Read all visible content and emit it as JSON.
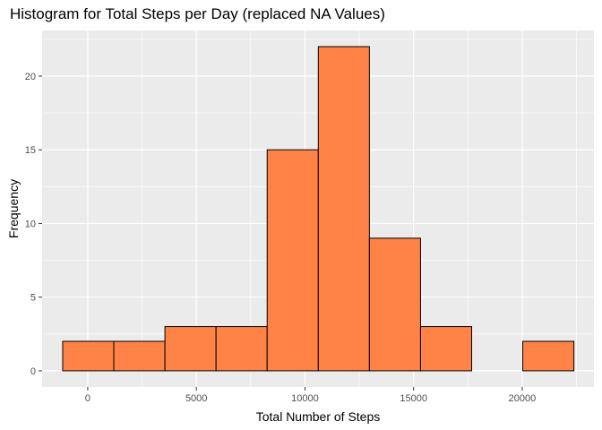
{
  "chart_data": {
    "type": "bar",
    "title": "Histogram for Total Steps per Day (replaced NA Values)",
    "xlabel": "Total Number of Steps",
    "ylabel": "Frequency",
    "bin_edges": [
      -1153,
      1200,
      3553,
      5906,
      8259,
      10612,
      12965,
      15318,
      17671,
      20024,
      22377
    ],
    "values": [
      2,
      2,
      3,
      3,
      15,
      22,
      9,
      3,
      0,
      2
    ],
    "xlim": [
      -2100,
      23300
    ],
    "ylim": [
      -1.1,
      23.1
    ],
    "x_ticks": [
      0,
      5000,
      10000,
      15000,
      20000
    ],
    "x_tick_labels": [
      "0",
      "5000",
      "10000",
      "15000",
      "20000"
    ],
    "y_ticks": [
      0,
      5,
      10,
      15,
      20
    ],
    "y_tick_labels": [
      "0",
      "5",
      "10",
      "15",
      "20"
    ],
    "fill_color": "#FF8247",
    "outline_color": "#000000",
    "panel_color": "#EBEBEB",
    "grid": true,
    "legend": "none"
  }
}
